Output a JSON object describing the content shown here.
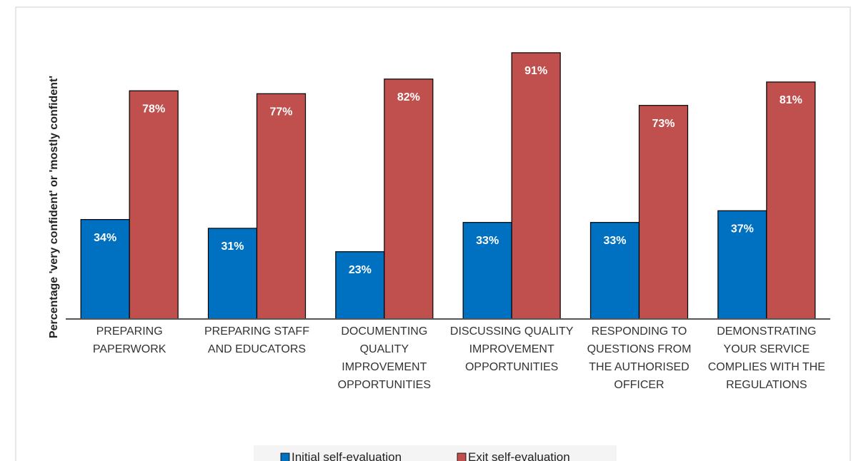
{
  "chart_data": {
    "type": "bar",
    "y_label": "Percentage 'very confident' or 'mostly confident'",
    "categories": [
      "PREPARING PAPERWORK",
      "PREPARING STAFF AND EDUCATORS",
      "DOCUMENTING QUALITY IMPROVEMENT OPPORTUNITIES",
      "DISCUSSING QUALITY IMPROVEMENT OPPORTUNITIES",
      "RESPONDING TO QUESTIONS FROM THE AUTHORISED OFFICER",
      "DEMONSTRATING YOUR SERVICE COMPLIES WITH THE REGULATIONS"
    ],
    "series": [
      {
        "name": "Initial self-evaluation",
        "color": "#0070c0",
        "values": [
          34,
          31,
          23,
          33,
          33,
          37
        ],
        "value_labels": [
          "34%",
          "31%",
          "23%",
          "33%",
          "33%",
          "37%"
        ]
      },
      {
        "name": "Exit self-evaluation",
        "color": "#c0504d",
        "values": [
          78,
          77,
          82,
          91,
          73,
          81
        ],
        "value_labels": [
          "78%",
          "77%",
          "82%",
          "91%",
          "73%",
          "81%"
        ]
      }
    ],
    "ylim": [
      0,
      100
    ],
    "legend": "bottom"
  }
}
